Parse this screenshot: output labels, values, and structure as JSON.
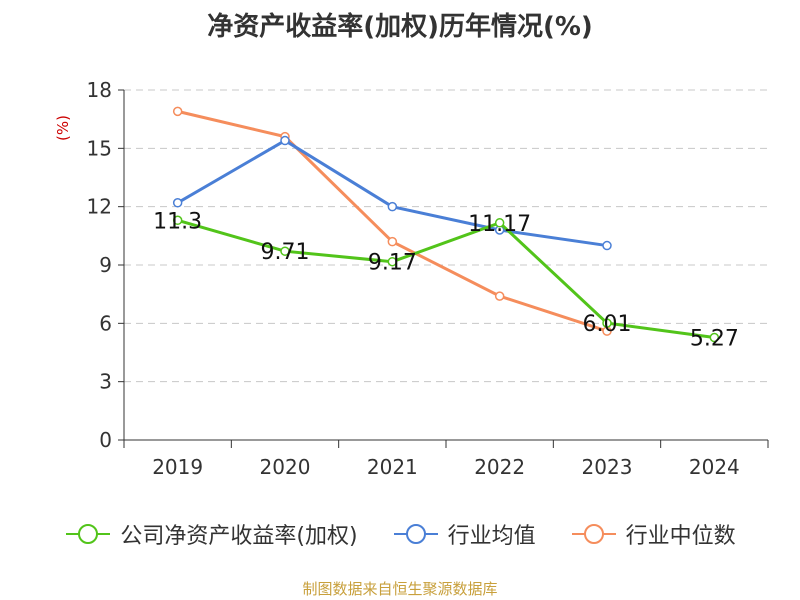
{
  "chart_data": {
    "type": "line",
    "title": "净资产收益率(加权)历年情况(%)",
    "ylabel": "(%)",
    "xlabel": "",
    "categories": [
      "2019",
      "2020",
      "2021",
      "2022",
      "2023",
      "2024"
    ],
    "ylim": [
      0,
      18
    ],
    "yticks": [
      0,
      3,
      6,
      9,
      12,
      15,
      18
    ],
    "series": [
      {
        "name": "公司净资产收益率(加权)",
        "color": "#52c41a",
        "values": [
          11.3,
          9.71,
          9.17,
          11.17,
          6.01,
          5.27
        ],
        "labels": [
          "11.3",
          "9.71",
          "9.17",
          "11.17",
          "6.01",
          "5.27"
        ]
      },
      {
        "name": "行业均值",
        "color": "#4a7fd6",
        "values": [
          12.2,
          15.4,
          12.0,
          10.8,
          10.0,
          null
        ]
      },
      {
        "name": "行业中位数",
        "color": "#f58d5c",
        "values": [
          16.9,
          15.6,
          10.2,
          7.4,
          5.6,
          null
        ]
      }
    ]
  },
  "source": "制图数据来自恒生聚源数据库"
}
